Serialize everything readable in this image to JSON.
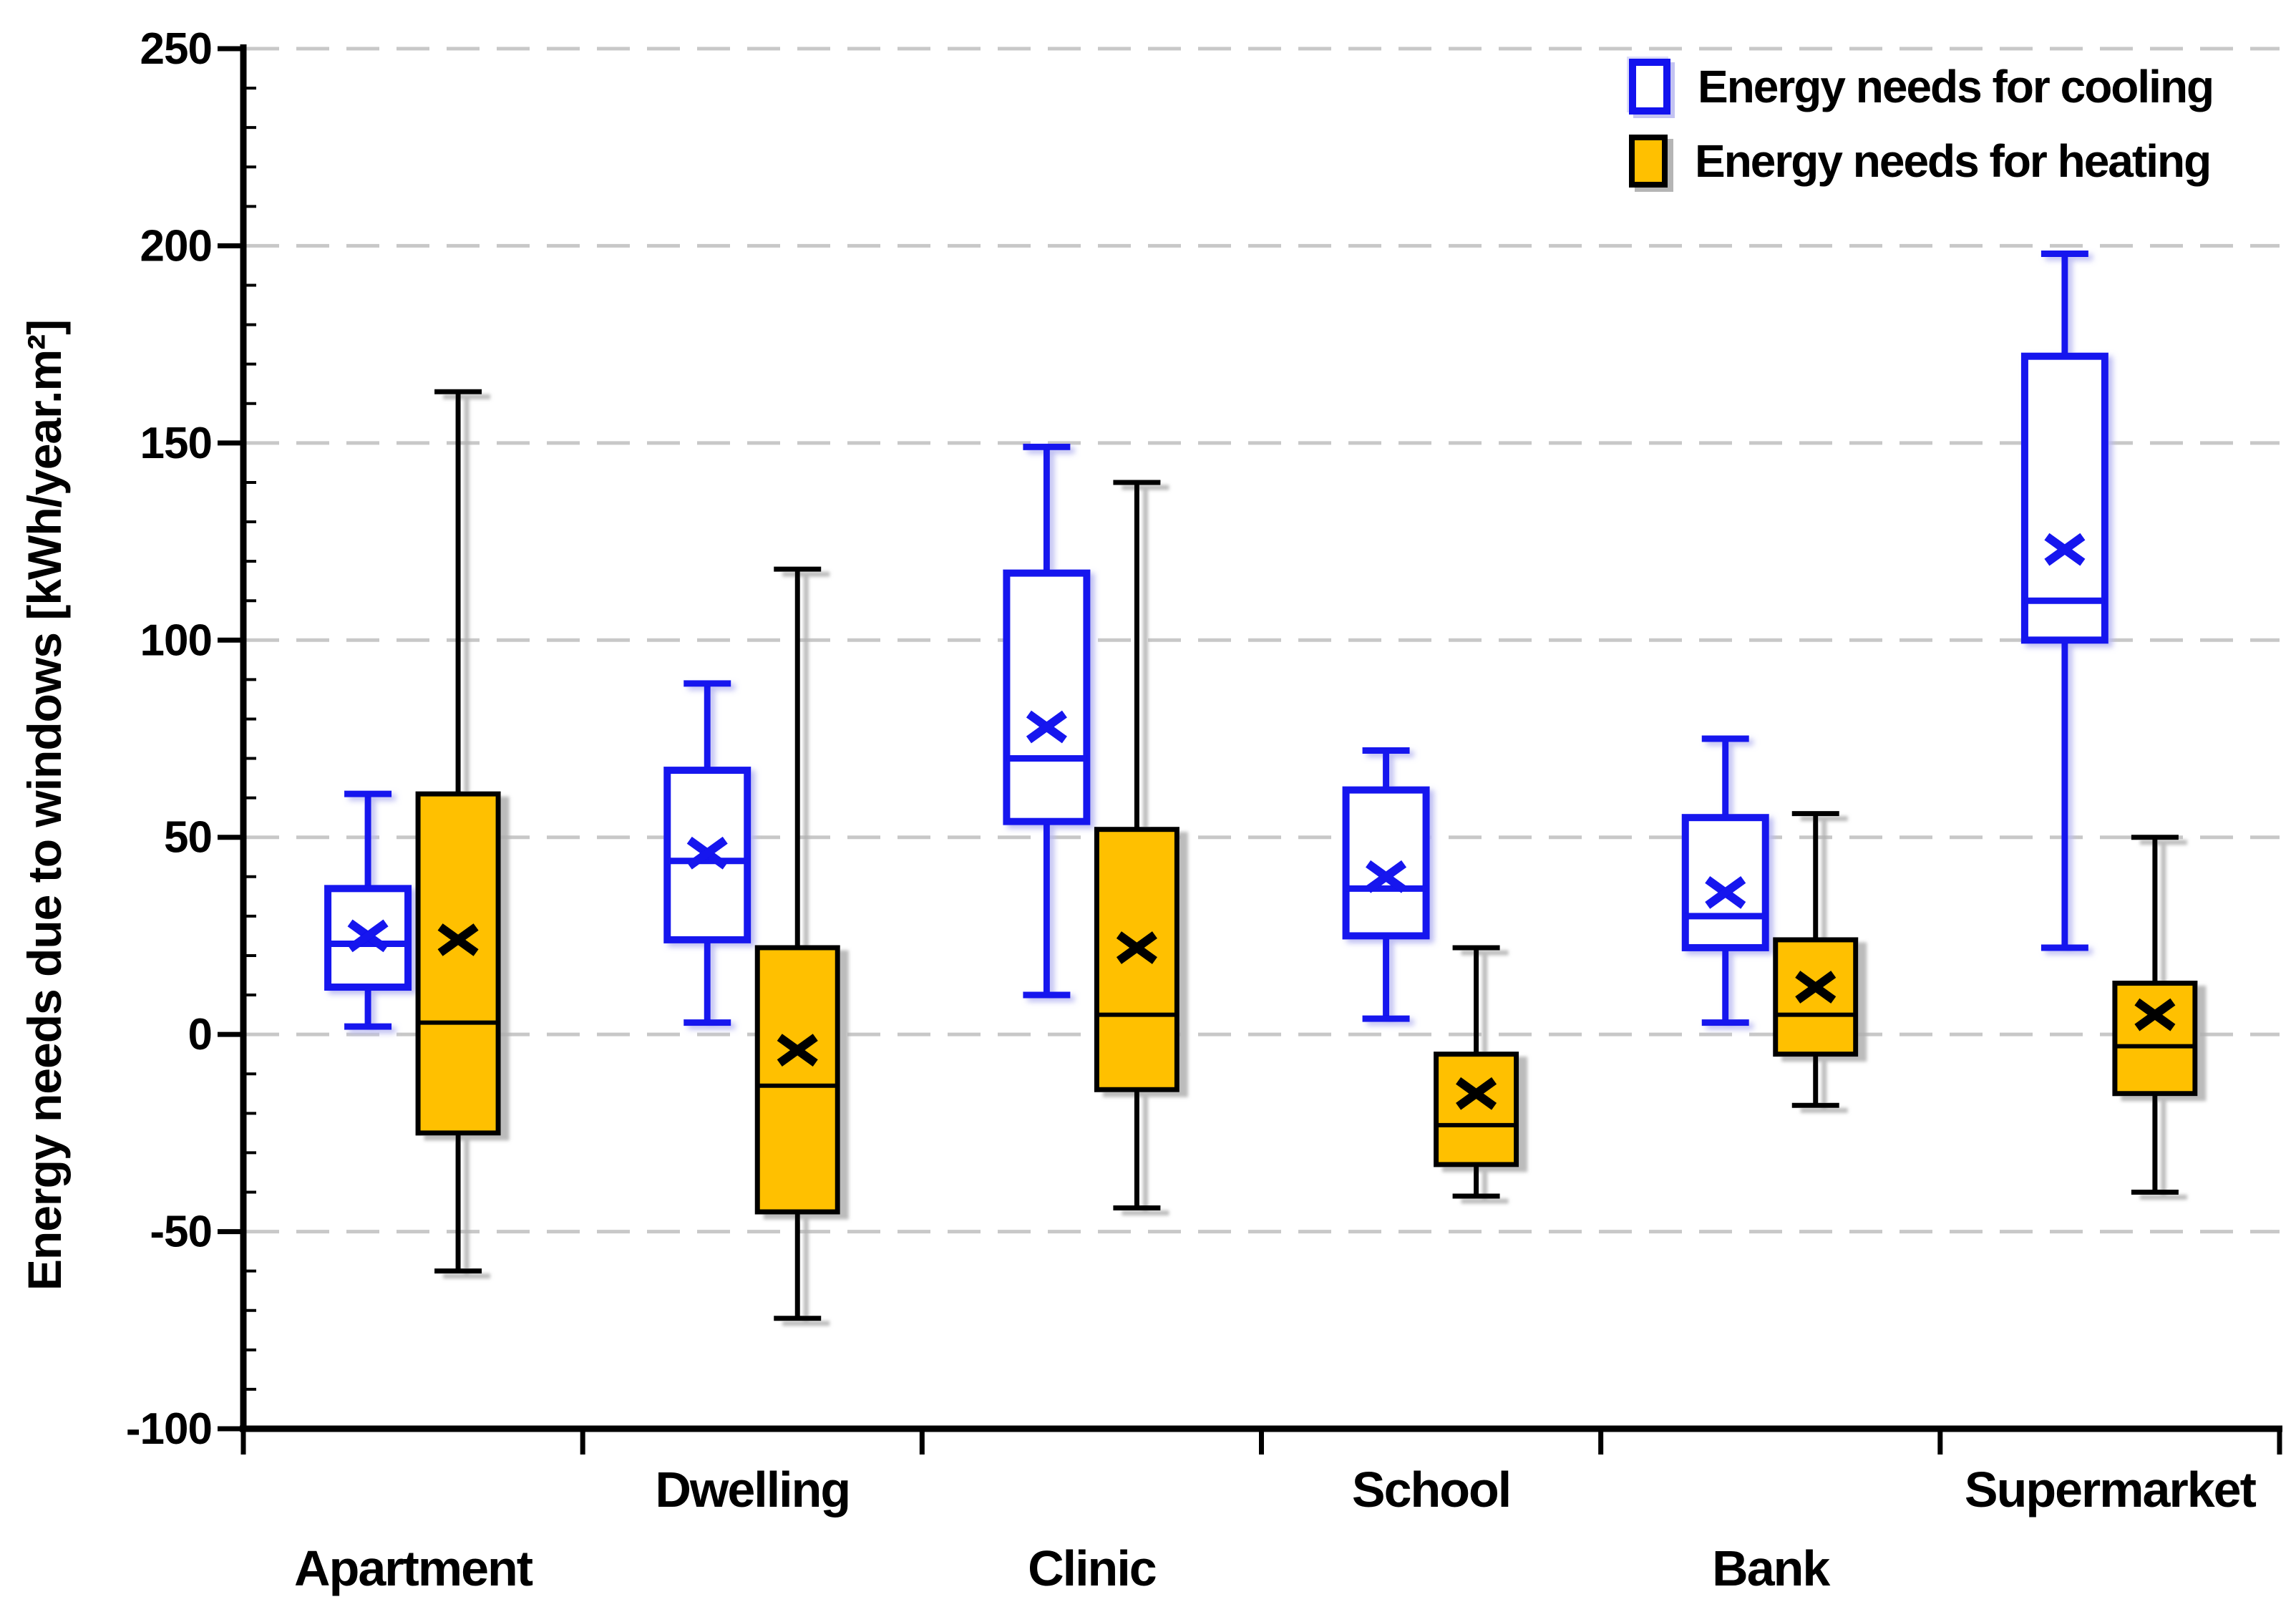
{
  "axis": {
    "y_title": "Energy needs due to windows  [kWh/year.m²]",
    "y_ticks": [
      250,
      200,
      150,
      100,
      50,
      0,
      -50,
      -100
    ],
    "y_minor_step": 10,
    "y_min": -100,
    "y_max": 250,
    "categories": [
      "Apartment",
      "Dwelling",
      "Clinic",
      "School",
      "Bank",
      "Supermarket"
    ]
  },
  "legend": {
    "items": [
      {
        "label": "Energy needs for cooling",
        "swatch": "cooling-swatch-icon"
      },
      {
        "label": "Energy needs for heating",
        "swatch": "heating-swatch-icon"
      }
    ]
  },
  "colors": {
    "cooling_stroke": "#1212ee",
    "cooling_glow": "#b9b9f2",
    "cooling_fill": "#ffffff",
    "heating_fill": "#ffc000",
    "heating_stroke": "#000000",
    "heating_shadow": "#b0b0b0",
    "gridline": "#c8c8c8",
    "axis": "#000000"
  },
  "chart_data": {
    "type": "boxplot",
    "title": "",
    "xlabel": "",
    "ylabel": "Energy needs due to windows [kWh/year.m²]",
    "ylim": [
      -100,
      250
    ],
    "grid": "horizontal-dashed",
    "legend_position": "top-right",
    "categories": [
      "Apartment",
      "Dwelling",
      "Clinic",
      "School",
      "Bank",
      "Supermarket"
    ],
    "series": [
      {
        "name": "Energy needs for cooling",
        "style": "white-fill-blue-outline",
        "boxes": [
          {
            "category": "Apartment",
            "whisker_low": 2,
            "q1": 12,
            "median": 23,
            "mean": 25,
            "q3": 37,
            "whisker_high": 61
          },
          {
            "category": "Dwelling",
            "whisker_low": 3,
            "q1": 24,
            "median": 44,
            "mean": 46,
            "q3": 67,
            "whisker_high": 89
          },
          {
            "category": "Clinic",
            "whisker_low": 10,
            "q1": 54,
            "median": 70,
            "mean": 78,
            "q3": 117,
            "whisker_high": 149
          },
          {
            "category": "School",
            "whisker_low": 4,
            "q1": 25,
            "median": 37,
            "mean": 40,
            "q3": 62,
            "whisker_high": 72
          },
          {
            "category": "Bank",
            "whisker_low": 3,
            "q1": 22,
            "median": 30,
            "mean": 36,
            "q3": 55,
            "whisker_high": 75
          },
          {
            "category": "Supermarket",
            "whisker_low": 22,
            "q1": 100,
            "median": 110,
            "mean": 123,
            "q3": 172,
            "whisker_high": 198
          }
        ]
      },
      {
        "name": "Energy needs for heating",
        "style": "orange-fill-black-outline",
        "boxes": [
          {
            "category": "Apartment",
            "whisker_low": -60,
            "q1": -25,
            "median": 3,
            "mean": 24,
            "q3": 61,
            "whisker_high": 163
          },
          {
            "category": "Dwelling",
            "whisker_low": -72,
            "q1": -45,
            "median": -13,
            "mean": -4,
            "q3": 22,
            "whisker_high": 118
          },
          {
            "category": "Clinic",
            "whisker_low": -44,
            "q1": -14,
            "median": 5,
            "mean": 22,
            "q3": 52,
            "whisker_high": 140
          },
          {
            "category": "School",
            "whisker_low": -41,
            "q1": -33,
            "median": -23,
            "mean": -15,
            "q3": -5,
            "whisker_high": 22
          },
          {
            "category": "Bank",
            "whisker_low": -18,
            "q1": -5,
            "median": 5,
            "mean": 12,
            "q3": 24,
            "whisker_high": 56
          },
          {
            "category": "Supermarket",
            "whisker_low": -40,
            "q1": -15,
            "median": -3,
            "mean": 5,
            "q3": 13,
            "whisker_high": 50
          }
        ]
      }
    ]
  }
}
